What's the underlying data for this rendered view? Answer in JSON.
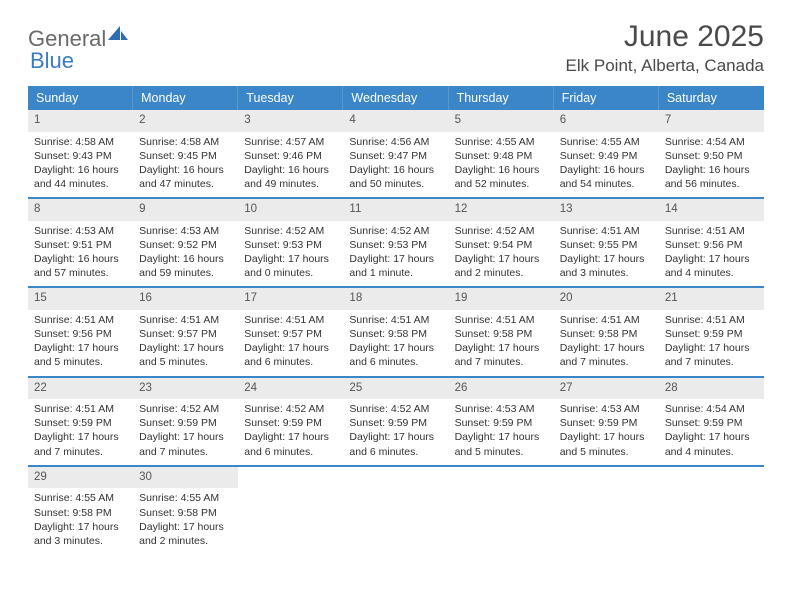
{
  "logo": {
    "text_general": "General",
    "text_blue": "Blue"
  },
  "header": {
    "month_title": "June 2025",
    "location": "Elk Point, Alberta, Canada"
  },
  "colors": {
    "header_blue": "#3a86c8",
    "daynum_bg": "#ebebeb",
    "text": "#333333",
    "logo_gray": "#6a6a6a",
    "logo_blue": "#3a7cc4"
  },
  "days_of_week": [
    "Sunday",
    "Monday",
    "Tuesday",
    "Wednesday",
    "Thursday",
    "Friday",
    "Saturday"
  ],
  "weeks": [
    [
      {
        "n": "1",
        "sunrise": "Sunrise: 4:58 AM",
        "sunset": "Sunset: 9:43 PM",
        "daylight": "Daylight: 16 hours and 44 minutes."
      },
      {
        "n": "2",
        "sunrise": "Sunrise: 4:58 AM",
        "sunset": "Sunset: 9:45 PM",
        "daylight": "Daylight: 16 hours and 47 minutes."
      },
      {
        "n": "3",
        "sunrise": "Sunrise: 4:57 AM",
        "sunset": "Sunset: 9:46 PM",
        "daylight": "Daylight: 16 hours and 49 minutes."
      },
      {
        "n": "4",
        "sunrise": "Sunrise: 4:56 AM",
        "sunset": "Sunset: 9:47 PM",
        "daylight": "Daylight: 16 hours and 50 minutes."
      },
      {
        "n": "5",
        "sunrise": "Sunrise: 4:55 AM",
        "sunset": "Sunset: 9:48 PM",
        "daylight": "Daylight: 16 hours and 52 minutes."
      },
      {
        "n": "6",
        "sunrise": "Sunrise: 4:55 AM",
        "sunset": "Sunset: 9:49 PM",
        "daylight": "Daylight: 16 hours and 54 minutes."
      },
      {
        "n": "7",
        "sunrise": "Sunrise: 4:54 AM",
        "sunset": "Sunset: 9:50 PM",
        "daylight": "Daylight: 16 hours and 56 minutes."
      }
    ],
    [
      {
        "n": "8",
        "sunrise": "Sunrise: 4:53 AM",
        "sunset": "Sunset: 9:51 PM",
        "daylight": "Daylight: 16 hours and 57 minutes."
      },
      {
        "n": "9",
        "sunrise": "Sunrise: 4:53 AM",
        "sunset": "Sunset: 9:52 PM",
        "daylight": "Daylight: 16 hours and 59 minutes."
      },
      {
        "n": "10",
        "sunrise": "Sunrise: 4:52 AM",
        "sunset": "Sunset: 9:53 PM",
        "daylight": "Daylight: 17 hours and 0 minutes."
      },
      {
        "n": "11",
        "sunrise": "Sunrise: 4:52 AM",
        "sunset": "Sunset: 9:53 PM",
        "daylight": "Daylight: 17 hours and 1 minute."
      },
      {
        "n": "12",
        "sunrise": "Sunrise: 4:52 AM",
        "sunset": "Sunset: 9:54 PM",
        "daylight": "Daylight: 17 hours and 2 minutes."
      },
      {
        "n": "13",
        "sunrise": "Sunrise: 4:51 AM",
        "sunset": "Sunset: 9:55 PM",
        "daylight": "Daylight: 17 hours and 3 minutes."
      },
      {
        "n": "14",
        "sunrise": "Sunrise: 4:51 AM",
        "sunset": "Sunset: 9:56 PM",
        "daylight": "Daylight: 17 hours and 4 minutes."
      }
    ],
    [
      {
        "n": "15",
        "sunrise": "Sunrise: 4:51 AM",
        "sunset": "Sunset: 9:56 PM",
        "daylight": "Daylight: 17 hours and 5 minutes."
      },
      {
        "n": "16",
        "sunrise": "Sunrise: 4:51 AM",
        "sunset": "Sunset: 9:57 PM",
        "daylight": "Daylight: 17 hours and 5 minutes."
      },
      {
        "n": "17",
        "sunrise": "Sunrise: 4:51 AM",
        "sunset": "Sunset: 9:57 PM",
        "daylight": "Daylight: 17 hours and 6 minutes."
      },
      {
        "n": "18",
        "sunrise": "Sunrise: 4:51 AM",
        "sunset": "Sunset: 9:58 PM",
        "daylight": "Daylight: 17 hours and 6 minutes."
      },
      {
        "n": "19",
        "sunrise": "Sunrise: 4:51 AM",
        "sunset": "Sunset: 9:58 PM",
        "daylight": "Daylight: 17 hours and 7 minutes."
      },
      {
        "n": "20",
        "sunrise": "Sunrise: 4:51 AM",
        "sunset": "Sunset: 9:58 PM",
        "daylight": "Daylight: 17 hours and 7 minutes."
      },
      {
        "n": "21",
        "sunrise": "Sunrise: 4:51 AM",
        "sunset": "Sunset: 9:59 PM",
        "daylight": "Daylight: 17 hours and 7 minutes."
      }
    ],
    [
      {
        "n": "22",
        "sunrise": "Sunrise: 4:51 AM",
        "sunset": "Sunset: 9:59 PM",
        "daylight": "Daylight: 17 hours and 7 minutes."
      },
      {
        "n": "23",
        "sunrise": "Sunrise: 4:52 AM",
        "sunset": "Sunset: 9:59 PM",
        "daylight": "Daylight: 17 hours and 7 minutes."
      },
      {
        "n": "24",
        "sunrise": "Sunrise: 4:52 AM",
        "sunset": "Sunset: 9:59 PM",
        "daylight": "Daylight: 17 hours and 6 minutes."
      },
      {
        "n": "25",
        "sunrise": "Sunrise: 4:52 AM",
        "sunset": "Sunset: 9:59 PM",
        "daylight": "Daylight: 17 hours and 6 minutes."
      },
      {
        "n": "26",
        "sunrise": "Sunrise: 4:53 AM",
        "sunset": "Sunset: 9:59 PM",
        "daylight": "Daylight: 17 hours and 5 minutes."
      },
      {
        "n": "27",
        "sunrise": "Sunrise: 4:53 AM",
        "sunset": "Sunset: 9:59 PM",
        "daylight": "Daylight: 17 hours and 5 minutes."
      },
      {
        "n": "28",
        "sunrise": "Sunrise: 4:54 AM",
        "sunset": "Sunset: 9:59 PM",
        "daylight": "Daylight: 17 hours and 4 minutes."
      }
    ],
    [
      {
        "n": "29",
        "sunrise": "Sunrise: 4:55 AM",
        "sunset": "Sunset: 9:58 PM",
        "daylight": "Daylight: 17 hours and 3 minutes."
      },
      {
        "n": "30",
        "sunrise": "Sunrise: 4:55 AM",
        "sunset": "Sunset: 9:58 PM",
        "daylight": "Daylight: 17 hours and 2 minutes."
      },
      null,
      null,
      null,
      null,
      null
    ]
  ]
}
